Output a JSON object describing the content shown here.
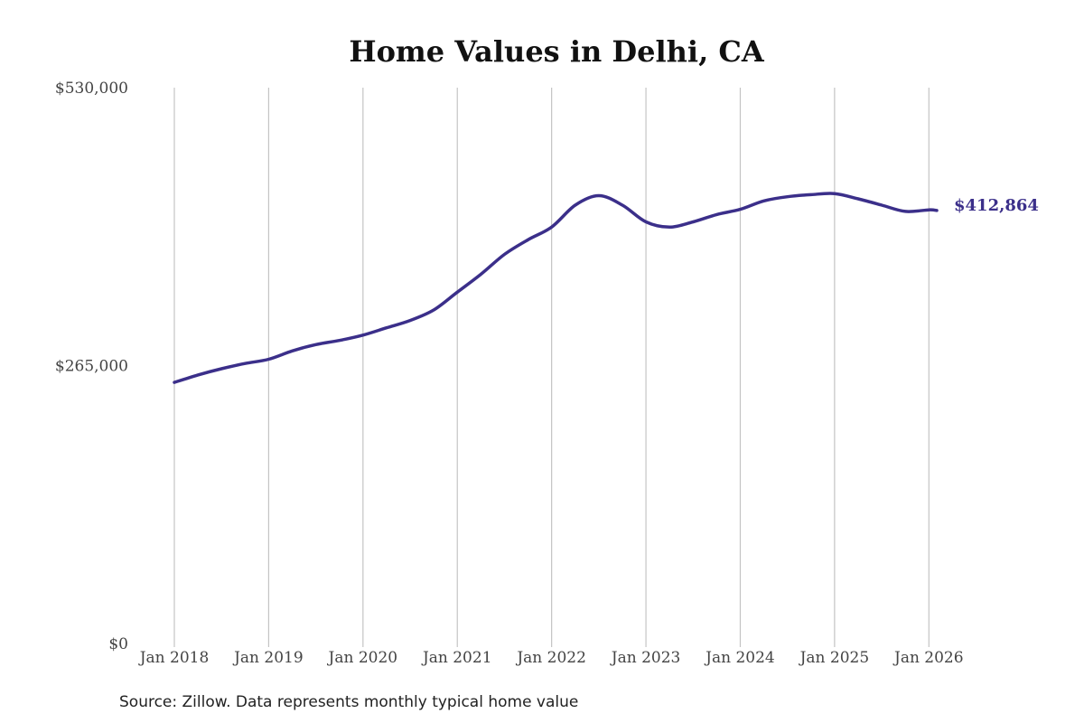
{
  "chart_data": {
    "type": "line",
    "title": "Home Values in Delhi, CA",
    "source": "Source: Zillow. Data represents monthly typical home value",
    "y_ticks": [
      {
        "value": 0,
        "label": "$0"
      },
      {
        "value": 265000,
        "label": "$265,000"
      },
      {
        "value": 530000,
        "label": "$530,000"
      }
    ],
    "ylim": [
      0,
      530000
    ],
    "x_ticks": [
      "Jan 2018",
      "Jan 2019",
      "Jan 2020",
      "Jan 2021",
      "Jan 2022",
      "Jan 2023",
      "Jan 2024",
      "Jan 2025",
      "Jan 2026"
    ],
    "xlim": [
      "2018-01",
      "2026-02"
    ],
    "grid": "vertical lines at x ticks",
    "line_color": "#3b2f8a",
    "end_label": "$412,864",
    "series": [
      {
        "points": [
          [
            "2018-01",
            249000
          ],
          [
            "2018-04",
            256000
          ],
          [
            "2018-07",
            262000
          ],
          [
            "2018-10",
            267000
          ],
          [
            "2019-01",
            271000
          ],
          [
            "2019-04",
            279000
          ],
          [
            "2019-07",
            285000
          ],
          [
            "2019-10",
            289000
          ],
          [
            "2020-01",
            294000
          ],
          [
            "2020-04",
            301000
          ],
          [
            "2020-07",
            308000
          ],
          [
            "2020-10",
            318000
          ],
          [
            "2021-01",
            335000
          ],
          [
            "2021-04",
            352000
          ],
          [
            "2021-07",
            371000
          ],
          [
            "2021-10",
            385000
          ],
          [
            "2022-01",
            397000
          ],
          [
            "2022-04",
            418000
          ],
          [
            "2022-07",
            427000
          ],
          [
            "2022-10",
            418000
          ],
          [
            "2023-01",
            402000
          ],
          [
            "2023-04",
            397000
          ],
          [
            "2023-07",
            402000
          ],
          [
            "2023-10",
            409000
          ],
          [
            "2024-01",
            414000
          ],
          [
            "2024-04",
            422000
          ],
          [
            "2024-07",
            426000
          ],
          [
            "2024-10",
            428000
          ],
          [
            "2025-01",
            429000
          ],
          [
            "2025-04",
            424000
          ],
          [
            "2025-07",
            418000
          ],
          [
            "2025-10",
            412000
          ],
          [
            "2026-01",
            413500
          ],
          [
            "2026-02",
            412864
          ]
        ]
      }
    ]
  }
}
